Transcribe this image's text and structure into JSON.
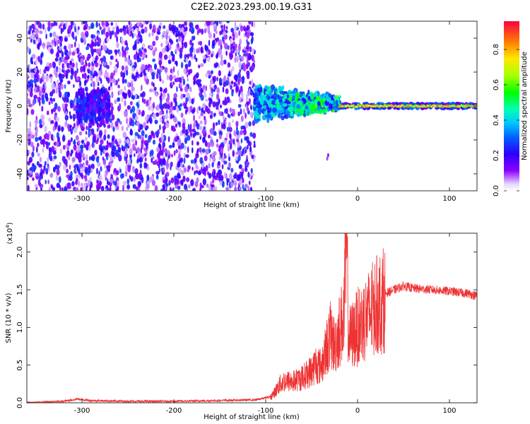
{
  "figure_title": "C2E2.2023.293.00.19.G31",
  "colorbar": {
    "label": "Normalized spectral amplitude",
    "ticks": [
      "0.0",
      "0.2",
      "0.4",
      "0.6",
      "0.8"
    ],
    "tick_values": [
      0.0,
      0.2,
      0.4,
      0.6,
      0.8
    ],
    "range": [
      0,
      0.96
    ]
  },
  "chart_data": [
    {
      "type": "heatmap",
      "title": "",
      "xlabel": "Height of straight line (km)",
      "ylabel": "Frequency (Hz)",
      "xlim": [
        -360,
        130
      ],
      "ylim": [
        -50,
        50
      ],
      "xticks": [
        -300,
        -200,
        -100,
        0,
        100
      ],
      "xtick_labels": [
        "-300",
        "-200",
        "-100",
        "0",
        "100"
      ],
      "yticks": [
        -40,
        -20,
        0,
        20,
        40
      ],
      "ytick_labels": [
        "-40",
        "-20",
        "0",
        "20",
        "40"
      ],
      "colormap": "rainbow (violet → blue → cyan → green → yellow → red)",
      "regions": [
        {
          "x_range": [
            -360,
            -112
          ],
          "freq_range": [
            -50,
            50
          ],
          "amplitude": [
            0.05,
            0.3
          ],
          "pattern": "broadband noise"
        },
        {
          "x_range": [
            -305,
            -270
          ],
          "freq_range": [
            -12,
            12
          ],
          "amplitude": [
            0.1,
            0.3
          ],
          "pattern": "denser cluster"
        },
        {
          "x_range": [
            -112,
            -20
          ],
          "freq_range": [
            -10,
            12
          ],
          "amplitude": [
            0.2,
            0.6
          ],
          "pattern": "narrowing band"
        },
        {
          "x_range": [
            -20,
            130
          ],
          "freq_range": [
            -2,
            2
          ],
          "amplitude": [
            0.6,
            0.9
          ],
          "pattern": "narrow carrier line"
        }
      ]
    },
    {
      "type": "line",
      "title": "",
      "xlabel": "Height of straight line (km)",
      "ylabel": "SNR (10 * v/v)",
      "y_multiplier": "(x10",
      "y_multiplier_exp": "4",
      "y_multiplier_close": ")",
      "xlim": [
        -360,
        130
      ],
      "ylim": [
        0,
        2.25
      ],
      "xticks": [
        -300,
        -200,
        -100,
        0,
        100
      ],
      "xtick_labels": [
        "-300",
        "-200",
        "-100",
        "0",
        "100"
      ],
      "yticks": [
        0.0,
        0.5,
        1.0,
        1.5,
        2.0
      ],
      "ytick_labels": [
        "0.0",
        "0.5",
        "1.0",
        "1.5",
        "2.0"
      ],
      "series": [
        {
          "color": "#ee3333",
          "x": [
            -360,
            -320,
            -305,
            -290,
            -250,
            -200,
            -150,
            -110,
            -95,
            -90,
            -85,
            -80,
            -70,
            -60,
            -50,
            -45,
            -40,
            -35,
            -30,
            -25,
            -20,
            -15,
            -12,
            -10,
            -8,
            0,
            10,
            20,
            30,
            40,
            50,
            60,
            80,
            100,
            120,
            130
          ],
          "y": [
            0.0,
            0.02,
            0.05,
            0.03,
            0.02,
            0.02,
            0.03,
            0.04,
            0.08,
            0.15,
            0.25,
            0.3,
            0.3,
            0.35,
            0.45,
            0.55,
            0.5,
            0.7,
            0.95,
            0.8,
            1.0,
            1.2,
            2.25,
            1.0,
            0.9,
            1.05,
            1.2,
            1.35,
            1.45,
            1.5,
            1.55,
            1.52,
            1.5,
            1.48,
            1.45,
            1.42
          ],
          "spike": {
            "x": -12,
            "y": 2.25
          }
        }
      ]
    }
  ]
}
